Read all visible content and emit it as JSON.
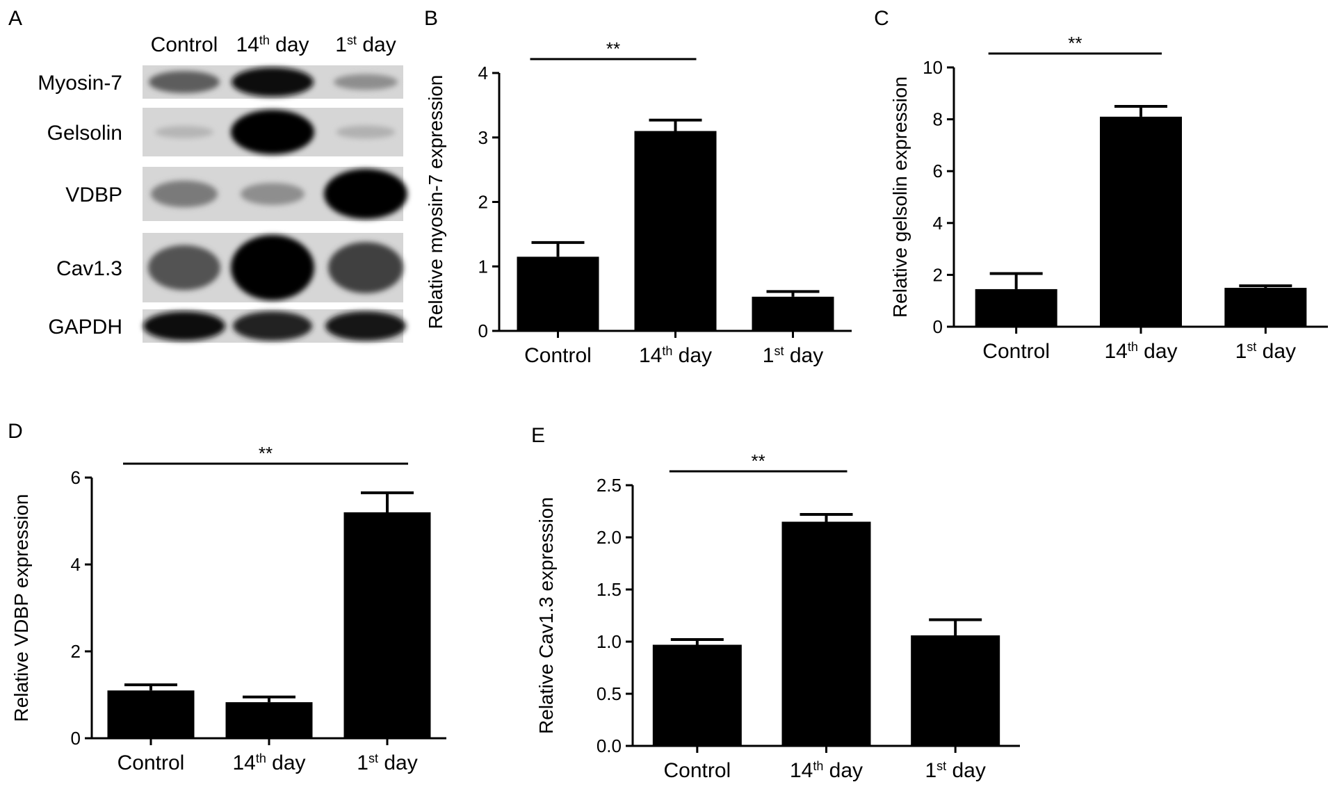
{
  "panel_letters": [
    "A",
    "B",
    "C",
    "D",
    "E"
  ],
  "blot": {
    "lanes": [
      "Control",
      "14th day",
      "1st day"
    ],
    "proteins": [
      "Myosin-7",
      "Gelsolin",
      "VDBP",
      "Cav1.3",
      "GAPDH"
    ],
    "band_intensity": [
      [
        0.55,
        0.95,
        0.3
      ],
      [
        0.1,
        1.0,
        0.12
      ],
      [
        0.4,
        0.3,
        1.0
      ],
      [
        0.6,
        1.0,
        0.7
      ],
      [
        0.95,
        0.85,
        0.9
      ]
    ]
  },
  "chart_data": [
    {
      "type": "bar",
      "panel": "B",
      "categories": [
        "Control",
        "14th day",
        "1st day"
      ],
      "values": [
        1.15,
        3.1,
        0.53
      ],
      "errors": [
        0.22,
        0.17,
        0.08
      ],
      "ylabel": "Relative myosin-7 expression",
      "ylim": [
        0,
        4
      ],
      "yticks": [
        "0",
        "1",
        "2",
        "3",
        "4"
      ],
      "significance": {
        "from": 0,
        "to": 1,
        "label": "**"
      }
    },
    {
      "type": "bar",
      "panel": "C",
      "categories": [
        "Control",
        "14th day",
        "1st day"
      ],
      "values": [
        1.45,
        8.1,
        1.5
      ],
      "errors": [
        0.6,
        0.4,
        0.08
      ],
      "ylabel": "Relative gelsolin expression",
      "ylim": [
        0,
        10
      ],
      "yticks": [
        "0",
        "2",
        "4",
        "6",
        "8",
        "10"
      ],
      "significance": {
        "from": 0,
        "to": 1,
        "label": "**"
      }
    },
    {
      "type": "bar",
      "panel": "D",
      "categories": [
        "Control",
        "14th day",
        "1st day"
      ],
      "values": [
        1.1,
        0.83,
        5.2
      ],
      "errors": [
        0.13,
        0.12,
        0.45
      ],
      "ylabel": "Relative VDBP expression",
      "ylim": [
        0,
        6
      ],
      "yticks": [
        "0",
        "2",
        "4",
        "6"
      ],
      "significance": {
        "from": 0,
        "to": 2,
        "label": "**"
      }
    },
    {
      "type": "bar",
      "panel": "E",
      "categories": [
        "Control",
        "14th day",
        "1st day"
      ],
      "values": [
        0.97,
        2.15,
        1.06
      ],
      "errors": [
        0.05,
        0.07,
        0.15
      ],
      "ylabel": "Relative Cav1.3 expression",
      "ylim": [
        0,
        2.5
      ],
      "yticks": [
        "0.0",
        "0.5",
        "1.0",
        "1.5",
        "2.0",
        "2.5"
      ],
      "significance": {
        "from": 0,
        "to": 1,
        "label": "**"
      }
    }
  ]
}
